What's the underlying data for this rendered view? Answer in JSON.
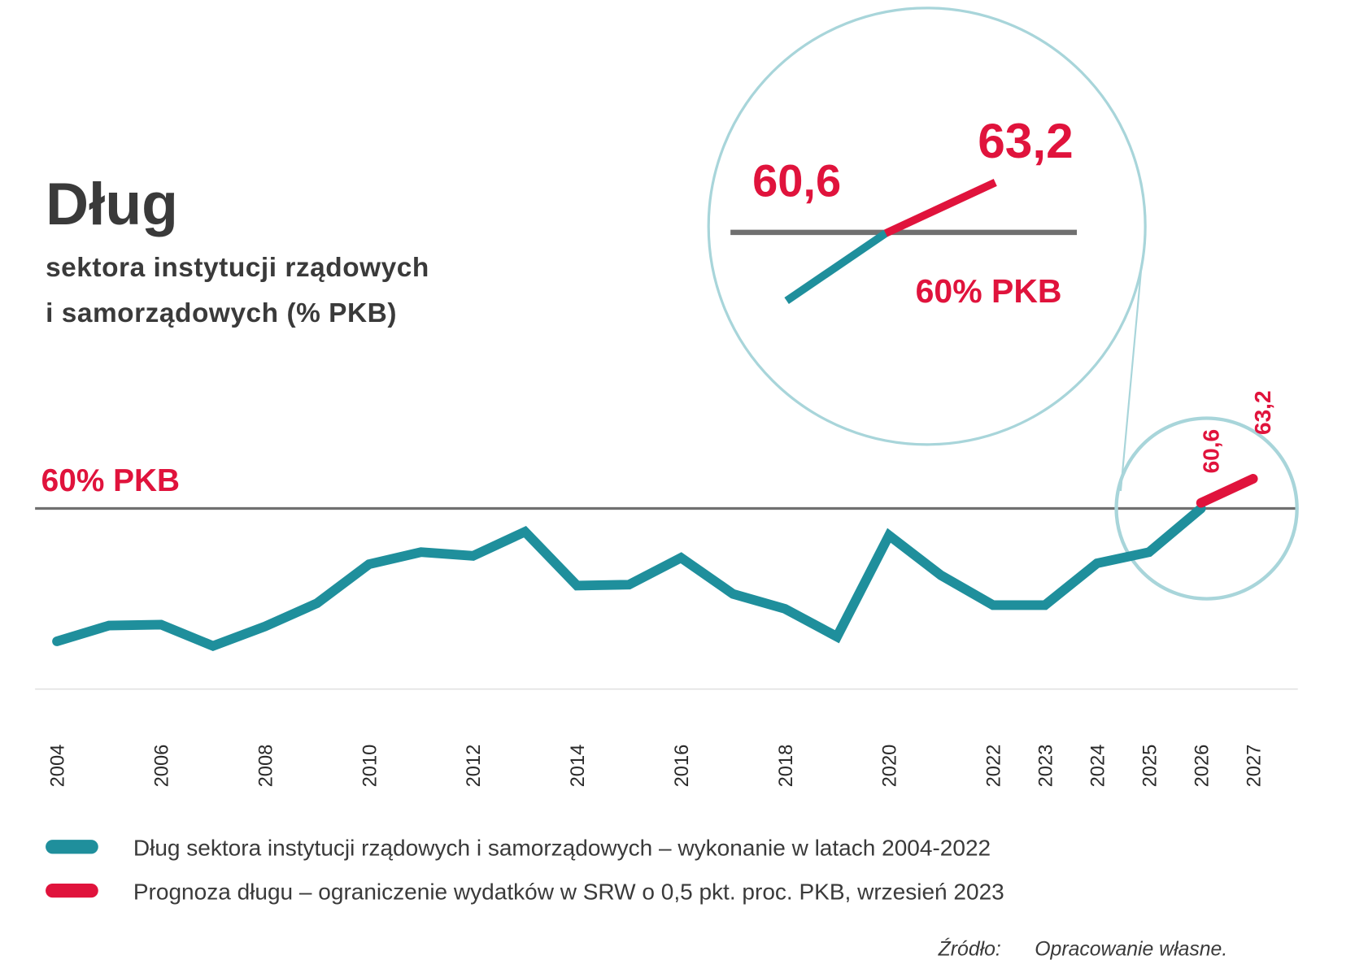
{
  "title": "Dług",
  "subtitle_line1": "sektora instytucji rządowych",
  "subtitle_line2": "i samorządowych (% PKB)",
  "threshold_label": "60% PKB",
  "zoom_inset": {
    "label_start": "60,6",
    "label_end": "63,2",
    "threshold_label": "60% PKB"
  },
  "legend": [
    {
      "label": "Dług sektora instytucji rządowych i samorządowych – wykonanie w latach 2004-2022",
      "color": "#1f8f9c"
    },
    {
      "label": "Prognoza długu – ograniczenie wydatków w SRW o 0,5 pkt. proc. PKB, wrzesień 2023",
      "color": "#e0133c"
    }
  ],
  "source_label": "Źródło:",
  "source_value": "Opracowanie własne.",
  "chart_data": {
    "type": "line",
    "title": "Dług sektora instytucji rządowych i samorządowych (% PKB)",
    "xlabel": "",
    "ylabel": "",
    "grid": false,
    "x_tick_labels": [
      "2004",
      "2006",
      "2008",
      "2010",
      "2012",
      "2014",
      "2016",
      "2018",
      "2020",
      "2022",
      "2023",
      "2024",
      "2025",
      "2026",
      "2027"
    ],
    "reference_line": {
      "value": 60,
      "label": "60% PKB",
      "color": "#707070"
    },
    "series": [
      {
        "name": "Dług sektora instytucji rządowych i samorządowych – wykonanie w latach 2004-2022",
        "color": "#1f8f9c",
        "x": [
          2004,
          2005,
          2006,
          2007,
          2008,
          2009,
          2010,
          2011,
          2012,
          2013,
          2014,
          2015,
          2016,
          2017,
          2018,
          2019,
          2020,
          2021,
          2022,
          2023,
          2024,
          2025,
          2026
        ],
        "y": [
          45.7,
          47.4,
          47.5,
          45.2,
          47.3,
          49.8,
          54.0,
          55.3,
          54.9,
          57.5,
          51.7,
          51.8,
          54.7,
          50.8,
          49.2,
          46.2,
          57.1,
          52.8,
          49.6,
          49.6,
          54.1,
          55.3,
          60.0
        ]
      },
      {
        "name": "Prognoza długu – ograniczenie wydatków w SRW o 0,5 pkt. proc. PKB, wrzesień 2023",
        "color": "#e0133c",
        "x": [
          2026,
          2027
        ],
        "y": [
          60.6,
          63.2
        ]
      }
    ],
    "data_labels": [
      {
        "x": 2026,
        "text": "60,6"
      },
      {
        "x": 2027,
        "text": "63,2"
      }
    ]
  }
}
